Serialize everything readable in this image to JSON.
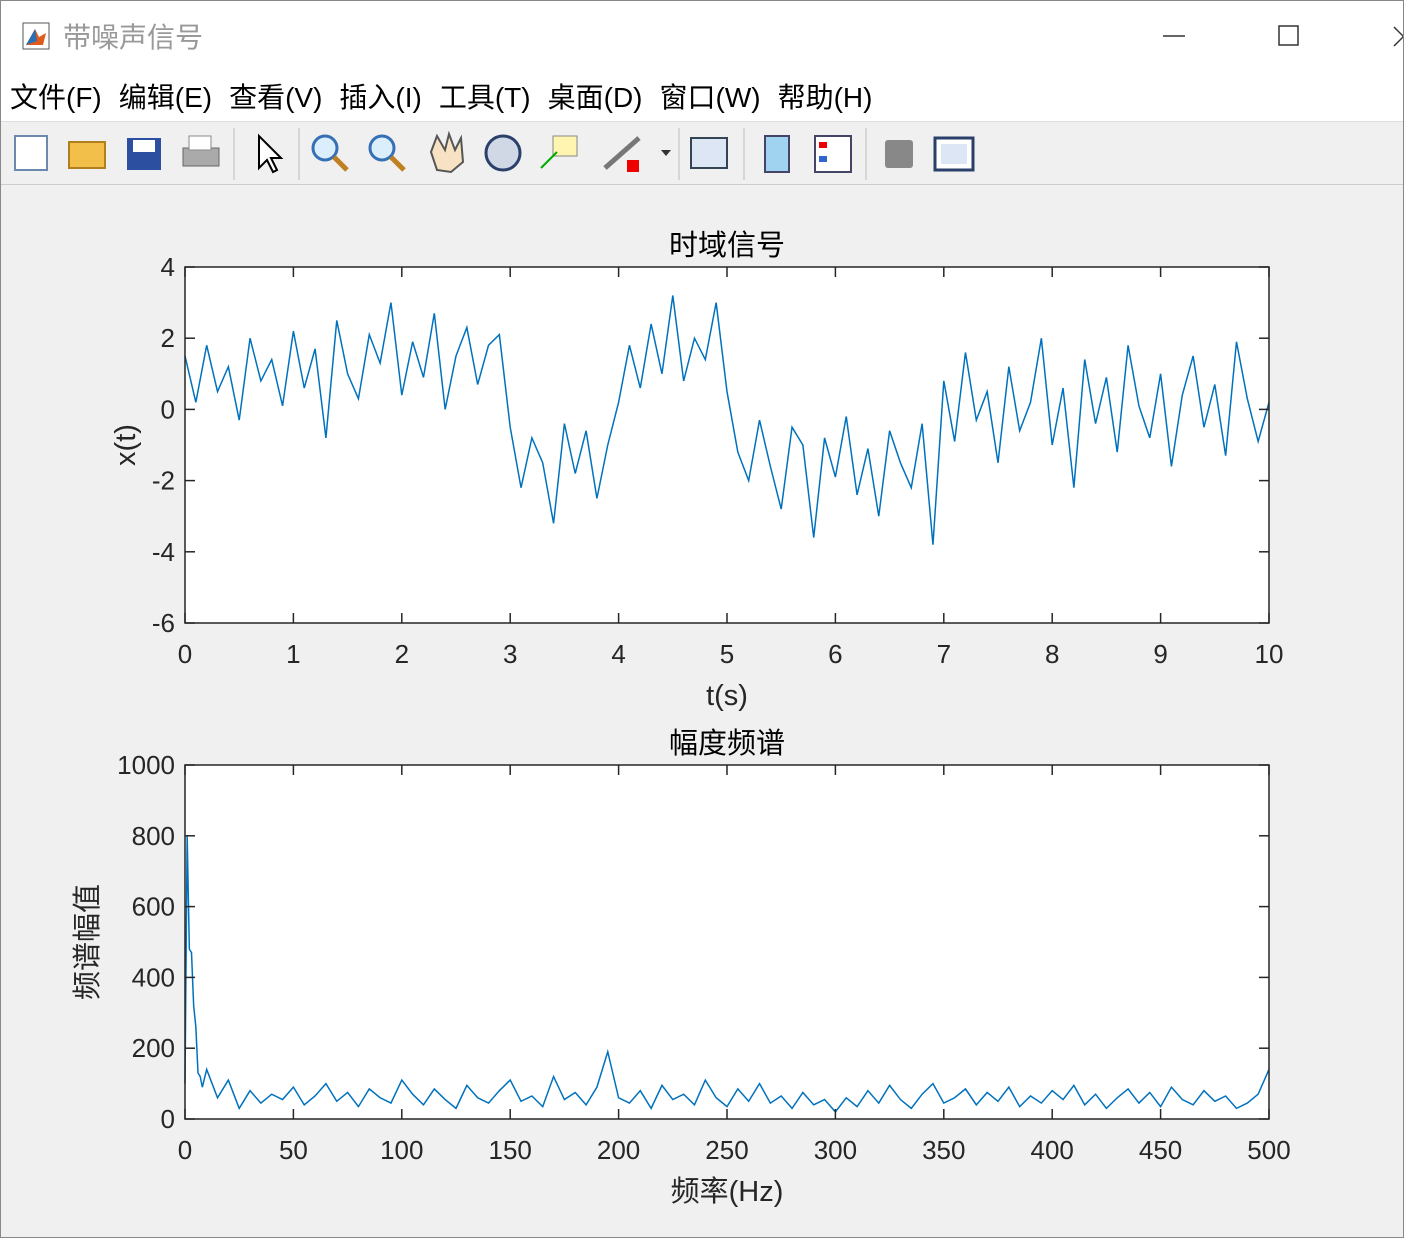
{
  "window": {
    "title": "带噪声信号",
    "menu": [
      "文件(F)",
      "编辑(E)",
      "查看(V)",
      "插入(I)",
      "工具(T)",
      "桌面(D)",
      "窗口(W)",
      "帮助(H)"
    ]
  },
  "chart_data": [
    {
      "type": "line",
      "title": "时域信号",
      "x_label": "t(s)",
      "y_label": "x(t)",
      "x": [
        0,
        0.1,
        0.2,
        0.3,
        0.4,
        0.5,
        0.6,
        0.7,
        0.8,
        0.9,
        1,
        1.1,
        1.2,
        1.3,
        1.4,
        1.5,
        1.6,
        1.7,
        1.8,
        1.9,
        2,
        2.1,
        2.2,
        2.3,
        2.4,
        2.5,
        2.6,
        2.7,
        2.8,
        2.9,
        3,
        3.1,
        3.2,
        3.3,
        3.4,
        3.5,
        3.6,
        3.7,
        3.8,
        3.9,
        4,
        4.1,
        4.2,
        4.3,
        4.4,
        4.5,
        4.6,
        4.7,
        4.8,
        4.9,
        5,
        5.1,
        5.2,
        5.3,
        5.4,
        5.5,
        5.6,
        5.7,
        5.8,
        5.9,
        6,
        6.1,
        6.2,
        6.3,
        6.4,
        6.5,
        6.6,
        6.7,
        6.8,
        6.9,
        7,
        7.1,
        7.2,
        7.3,
        7.4,
        7.5,
        7.6,
        7.7,
        7.8,
        7.9,
        8,
        8.1,
        8.2,
        8.3,
        8.4,
        8.5,
        8.6,
        8.7,
        8.8,
        8.9,
        9,
        9.1,
        9.2,
        9.3,
        9.4,
        9.5,
        9.6,
        9.7,
        9.8,
        9.9,
        10
      ],
      "series": [
        {
          "color": "#0072bd",
          "values": [
            1.5,
            0.2,
            1.8,
            0.5,
            1.2,
            -0.3,
            2.0,
            0.8,
            1.4,
            0.1,
            2.2,
            0.6,
            1.7,
            -0.8,
            2.5,
            1.0,
            0.3,
            2.1,
            1.3,
            3.0,
            0.4,
            1.9,
            0.9,
            2.7,
            0.0,
            1.5,
            2.3,
            0.7,
            1.8,
            2.1,
            -0.5,
            -2.2,
            -0.8,
            -1.5,
            -3.2,
            -0.4,
            -1.8,
            -0.6,
            -2.5,
            -1.0,
            0.2,
            1.8,
            0.6,
            2.4,
            1.0,
            3.2,
            0.8,
            2.0,
            1.4,
            3.0,
            0.5,
            -1.2,
            -2.0,
            -0.3,
            -1.6,
            -2.8,
            -0.5,
            -1.0,
            -3.6,
            -0.8,
            -1.9,
            -0.2,
            -2.4,
            -1.1,
            -3.0,
            -0.6,
            -1.5,
            -2.2,
            -0.4,
            -3.8,
            0.8,
            -0.9,
            1.6,
            -0.3,
            0.5,
            -1.5,
            1.2,
            -0.6,
            0.2,
            2.0,
            -1.0,
            0.6,
            -2.2,
            1.4,
            -0.4,
            0.9,
            -1.2,
            1.8,
            0.1,
            -0.8,
            1.0,
            -1.6,
            0.4,
            1.5,
            -0.5,
            0.7,
            -1.3,
            1.9,
            0.3,
            -0.9,
            0.2
          ]
        }
      ],
      "xlim": [
        0,
        10
      ],
      "xticks": [
        0,
        1,
        2,
        3,
        4,
        5,
        6,
        7,
        8,
        9,
        10
      ],
      "ylim": [
        -6,
        4
      ],
      "yticks": [
        -6,
        -4,
        -2,
        0,
        2,
        4
      ]
    },
    {
      "type": "line",
      "title": "幅度频谱",
      "x_label": "频率(Hz)",
      "y_label": "频谱幅值",
      "x": [
        0,
        1,
        2,
        3,
        4,
        5,
        6,
        7,
        8,
        10,
        15,
        20,
        25,
        30,
        35,
        40,
        45,
        50,
        55,
        60,
        65,
        70,
        75,
        80,
        85,
        90,
        95,
        100,
        105,
        110,
        115,
        120,
        125,
        130,
        135,
        140,
        145,
        150,
        155,
        160,
        165,
        170,
        175,
        180,
        185,
        190,
        195,
        200,
        205,
        210,
        215,
        220,
        225,
        230,
        235,
        240,
        245,
        250,
        255,
        260,
        265,
        270,
        275,
        280,
        285,
        290,
        295,
        300,
        305,
        310,
        315,
        320,
        325,
        330,
        335,
        340,
        345,
        350,
        355,
        360,
        365,
        370,
        375,
        380,
        385,
        390,
        395,
        400,
        405,
        410,
        415,
        420,
        425,
        430,
        435,
        440,
        445,
        450,
        455,
        460,
        465,
        470,
        475,
        480,
        485,
        490,
        495,
        500
      ],
      "series": [
        {
          "color": "#0072bd",
          "values": [
            100,
            800,
            480,
            470,
            320,
            260,
            130,
            120,
            90,
            140,
            60,
            110,
            30,
            80,
            45,
            70,
            55,
            90,
            40,
            65,
            100,
            50,
            75,
            35,
            85,
            60,
            45,
            110,
            70,
            40,
            85,
            55,
            30,
            95,
            60,
            45,
            80,
            110,
            50,
            65,
            35,
            120,
            55,
            75,
            40,
            90,
            190,
            60,
            45,
            80,
            30,
            95,
            55,
            70,
            40,
            110,
            60,
            35,
            85,
            50,
            100,
            45,
            65,
            30,
            75,
            40,
            55,
            20,
            60,
            35,
            80,
            45,
            95,
            55,
            30,
            70,
            100,
            45,
            60,
            85,
            40,
            75,
            50,
            90,
            35,
            65,
            45,
            80,
            55,
            95,
            40,
            70,
            30,
            60,
            85,
            45,
            75,
            35,
            90,
            55,
            40,
            80,
            50,
            65,
            30,
            45,
            70,
            140
          ]
        }
      ],
      "xlim": [
        0,
        500
      ],
      "xticks": [
        0,
        50,
        100,
        150,
        200,
        250,
        300,
        350,
        400,
        450,
        500
      ],
      "ylim": [
        0,
        1000
      ],
      "yticks": [
        0,
        200,
        400,
        600,
        800,
        1000
      ]
    }
  ]
}
